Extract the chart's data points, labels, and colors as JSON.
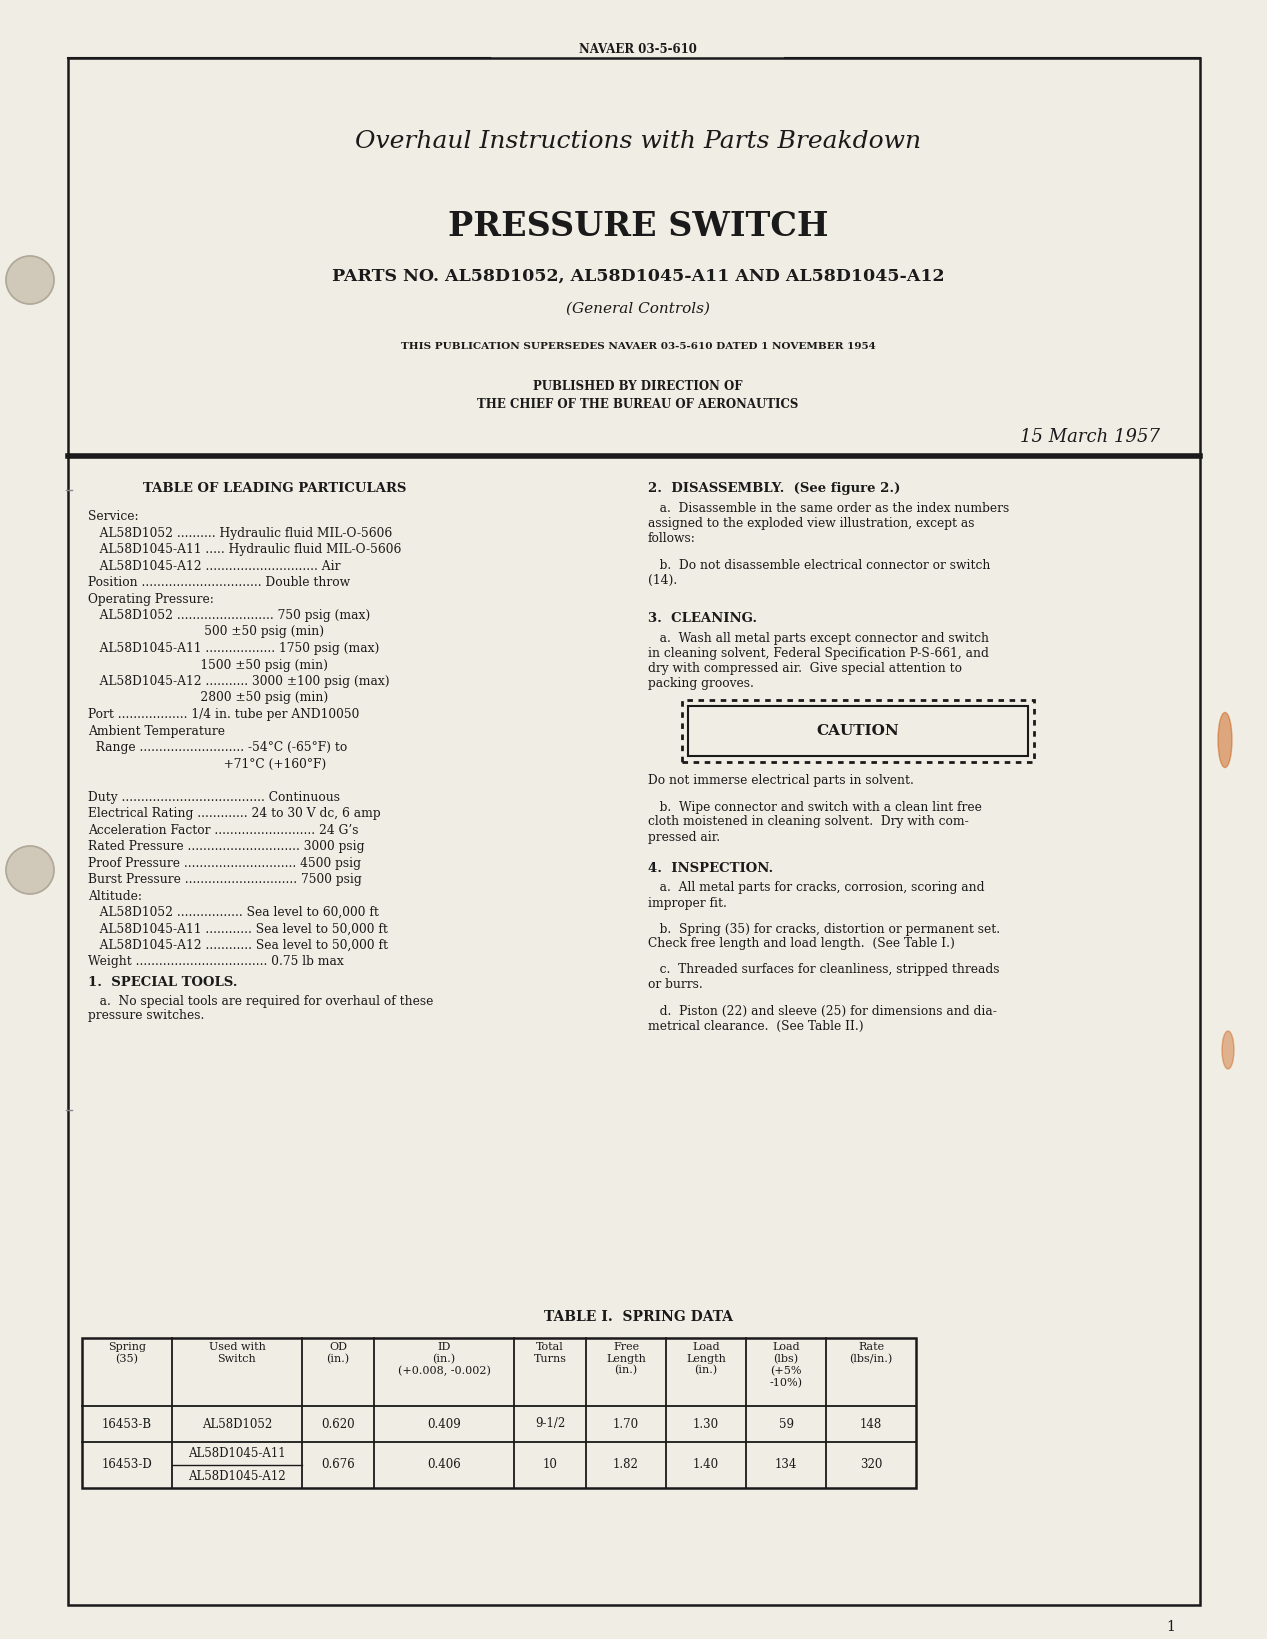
{
  "bg_color": "#f0ede4",
  "page_bg": "#f0ede4",
  "text_color": "#1a1a1a",
  "header_doc_num": "NAVAER 03-5-610",
  "title_line1": "Overhaul Instructions with Parts Breakdown",
  "title_line2": "PRESSURE SWITCH",
  "title_line3": "PARTS NO. AL58D1052, AL58D1045-A11 AND AL58D1045-A12",
  "title_line4": "(General Controls)",
  "pub_line1": "THIS PUBLICATION SUPERSEDES NAVAER 03-5-610 DATED 1 NOVEMBER 1954",
  "pub_line2": "PUBLISHED BY DIRECTION OF",
  "pub_line3": "THE CHIEF OF THE BUREAU OF AERONAUTICS",
  "date": "15 March 1957",
  "section_left_title": "TABLE OF LEADING PARTICULARS",
  "left_content": [
    [
      "Service:",
      false
    ],
    [
      "   AL58D1052 .......... Hydraulic fluid MIL-O-5606",
      false
    ],
    [
      "   AL58D1045-A11 ..... Hydraulic fluid MIL-O-5606",
      false
    ],
    [
      "   AL58D1045-A12 ............................. Air",
      false
    ],
    [
      "Position ............................... Double throw",
      false
    ],
    [
      "Operating Pressure:",
      false
    ],
    [
      "   AL58D1052 ......................... 750 psig (max)",
      false
    ],
    [
      "                              500 ±50 psig (min)",
      false
    ],
    [
      "   AL58D1045-A11 .................. 1750 psig (max)",
      false
    ],
    [
      "                             1500 ±50 psig (min)",
      false
    ],
    [
      "   AL58D1045-A12 ........... 3000 ±100 psig (max)",
      false
    ],
    [
      "                             2800 ±50 psig (min)",
      false
    ],
    [
      "Port .................. 1/4 in. tube per AND10050",
      false
    ],
    [
      "Ambient Temperature",
      false
    ],
    [
      "  Range ........................... -54°C (-65°F) to",
      false
    ],
    [
      "                                   +71°C (+160°F)",
      false
    ],
    [
      "",
      false
    ],
    [
      "Duty ..................................... Continuous",
      false
    ],
    [
      "Electrical Rating ............. 24 to 30 V dc, 6 amp",
      false
    ],
    [
      "Acceleration Factor .......................... 24 G’s",
      false
    ],
    [
      "Rated Pressure ............................. 3000 psig",
      false
    ],
    [
      "Proof Pressure ............................. 4500 psig",
      false
    ],
    [
      "Burst Pressure ............................. 7500 psig",
      false
    ],
    [
      "Altitude:",
      false
    ],
    [
      "   AL58D1052 ................. Sea level to 60,000 ft",
      false
    ],
    [
      "   AL58D1045-A11 ............ Sea level to 50,000 ft",
      false
    ],
    [
      "   AL58D1045-A12 ............ Sea level to 50,000 ft",
      false
    ],
    [
      "Weight .................................. 0.75 lb max",
      false
    ]
  ],
  "special_tools_title": "1.  SPECIAL TOOLS.",
  "special_tools_a": "   a.  No special tools are required for overhaul of these\npressure switches.",
  "dis_title": "2.  DISASSEMBLY.  (See figure 2.)",
  "dis_a": "   a.  Disassemble in the same order as the index numbers\nassigned to the exploded view illustration, except as\nfollows:",
  "dis_b": "   b.  Do not disassemble electrical connector or switch\n(14).",
  "cleaning_title": "3.  CLEANING.",
  "cleaning_a": "   a.  Wash all metal parts except connector and switch\nin cleaning solvent, Federal Specification P-S-661, and\ndry with compressed air.  Give special attention to\npacking grooves.",
  "caution_label": "CAUTION",
  "caution_note": "Do not immerse electrical parts in solvent.",
  "cleaning_b": "   b.  Wipe connector and switch with a clean lint free\ncloth moistened in cleaning solvent.  Dry with com-\npressed air.",
  "insp_title": "4.  INSPECTION.",
  "insp_a": "   a.  All metal parts for cracks, corrosion, scoring and\nimproper fit.",
  "insp_b": "   b.  Spring (35) for cracks, distortion or permanent set.\nCheck free length and load length.  (See Table I.)",
  "insp_c": "   c.  Threaded surfaces for cleanliness, stripped threads\nor burrs.",
  "insp_d": "   d.  Piston (22) and sleeve (25) for dimensions and dia-\nmetrical clearance.  (See Table II.)",
  "table_title": "TABLE I.  SPRING DATA",
  "table_col_headers": [
    "Spring\n(35)",
    "Used with\nSwitch",
    "OD\n(in.)",
    "ID\n(in.)\n(+0.008, -0.002)",
    "Total\nTurns",
    "Free\nLength\n(in.)",
    "Load\nLength\n(in.)",
    "Load\n(lbs)\n(+5%\n-10%)",
    "Rate\n(lbs/in.)"
  ],
  "table_col_widths": [
    90,
    130,
    72,
    140,
    72,
    80,
    80,
    80,
    90
  ],
  "table_row1": [
    "16453-B",
    "AL58D1052",
    "0.620",
    "0.409",
    "9-1/2",
    "1.70",
    "1.30",
    "59",
    "148"
  ],
  "table_row2a": [
    "16453-D",
    "AL58D1045-A11",
    "0.676",
    "0.406",
    "10",
    "1.82",
    "1.40",
    "134",
    "320"
  ],
  "table_row2b": [
    "",
    "AL58D1045-A12",
    "",
    "",
    "",
    "",
    "",
    "",
    ""
  ],
  "page_num": "1"
}
